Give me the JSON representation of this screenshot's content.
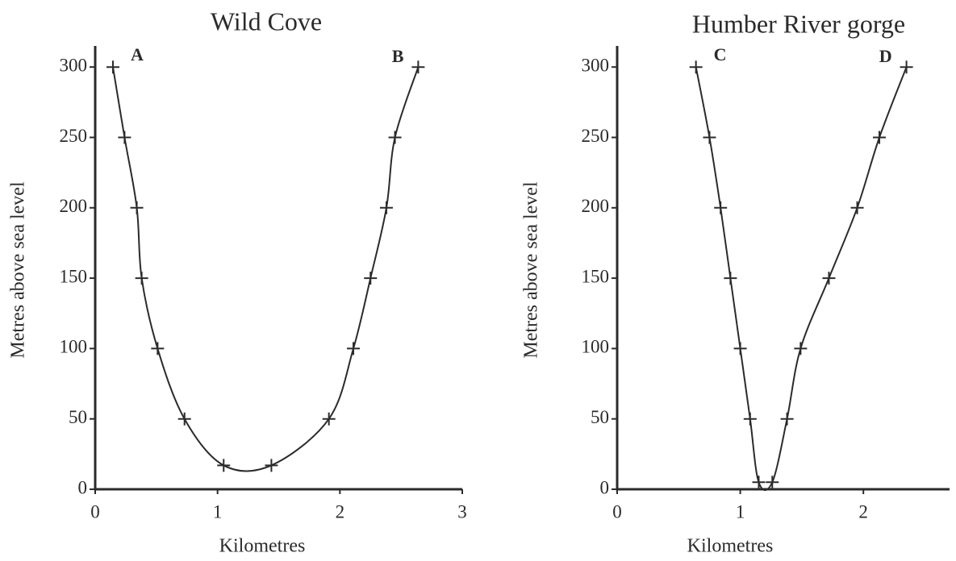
{
  "chart_data": [
    {
      "type": "line",
      "title": "Wild Cove",
      "xlabel": "Kilometres",
      "ylabel": "Metres above sea level",
      "x": [
        0.145,
        0.24,
        0.34,
        0.38,
        0.51,
        0.73,
        1.05,
        1.44,
        1.91,
        2.11,
        2.25,
        2.38,
        2.45,
        2.64
      ],
      "values": [
        300,
        250,
        200,
        150,
        100,
        50,
        17,
        17,
        50,
        100,
        150,
        200,
        250,
        300
      ],
      "color": "#2b2b2b",
      "xlim": [
        0,
        3
      ],
      "xticks": [
        0,
        1,
        2,
        3
      ],
      "ylim": [
        0,
        315
      ],
      "yticks": [
        0,
        50,
        100,
        150,
        200,
        250,
        300
      ],
      "annotations": [
        "A",
        "B"
      ]
    },
    {
      "type": "line",
      "title": "Humber River gorge",
      "xlabel": "Kilometres",
      "ylabel": "Metres above sea level",
      "x": [
        0.64,
        0.75,
        0.84,
        0.92,
        1.0,
        1.08,
        1.15,
        1.26,
        1.38,
        1.49,
        1.72,
        1.95,
        2.13,
        2.35
      ],
      "values": [
        300,
        250,
        200,
        150,
        100,
        50,
        5,
        5,
        50,
        100,
        150,
        200,
        250,
        300
      ],
      "color": "#2b2b2b",
      "xlim": [
        0,
        2.7
      ],
      "xticks": [
        0,
        1,
        2
      ],
      "ylim": [
        0,
        315
      ],
      "yticks": [
        0,
        50,
        100,
        150,
        200,
        250,
        300
      ],
      "annotations": [
        "C",
        "D"
      ]
    }
  ]
}
